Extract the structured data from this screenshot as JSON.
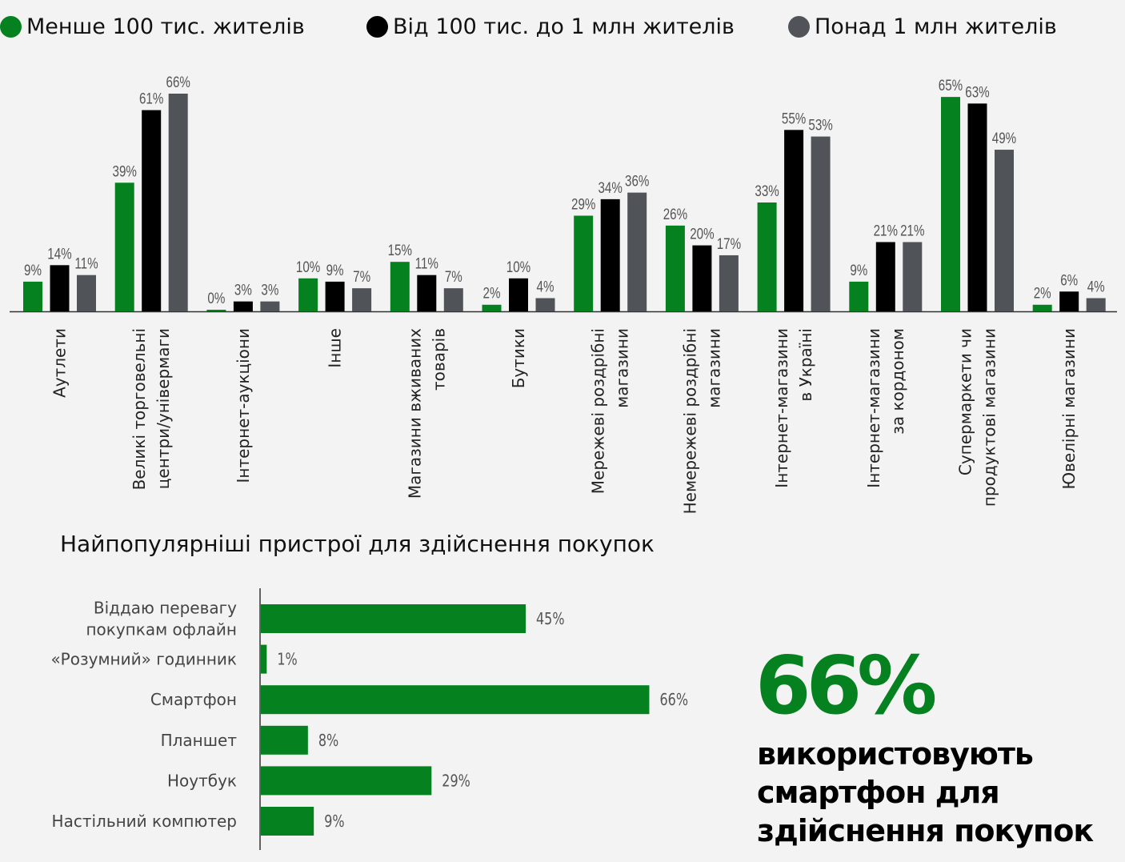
{
  "colors": {
    "small": "#05821f",
    "medium": "#000000",
    "large": "#505357",
    "background": "#f3f3f3"
  },
  "chart_data": [
    {
      "type": "bar",
      "title": "",
      "legend_position": "top",
      "ylim": [
        0,
        70
      ],
      "series": [
        {
          "name": "Менше 100 тис. жителів",
          "values": [
            9,
            39,
            0,
            10,
            15,
            2,
            29,
            26,
            33,
            9,
            65,
            2
          ]
        },
        {
          "name": "Від 100 тис. до 1 млн жителів",
          "values": [
            14,
            61,
            3,
            9,
            11,
            10,
            34,
            20,
            55,
            21,
            63,
            6
          ]
        },
        {
          "name": "Понад 1 млн жителів",
          "values": [
            11,
            66,
            3,
            7,
            7,
            4,
            36,
            17,
            53,
            21,
            49,
            4
          ]
        }
      ],
      "categories": [
        [
          "Аутлети"
        ],
        [
          "Великі торговельні",
          "центри/універмаги"
        ],
        [
          "Інтернет-аукціони"
        ],
        [
          "Інше"
        ],
        [
          "Магазини вживаних",
          "товарів"
        ],
        [
          "Бутики"
        ],
        [
          "Мережеві роздрібні",
          "магазини"
        ],
        [
          "Немережеві роздрібні",
          "магазини"
        ],
        [
          "Інтернет-магазини",
          "в Україні"
        ],
        [
          "Інтернет-магазини",
          "за кордоном"
        ],
        [
          "Супермаркети чи",
          "продуктові магазини"
        ],
        [
          "Ювелірні магазини"
        ]
      ]
    },
    {
      "type": "bar",
      "orientation": "horizontal",
      "title": "Найпопулярніші пристрої для здійснення покупок",
      "xlim": [
        0,
        70
      ],
      "categories": [
        [
          "Віддаю перевагу",
          "покупкам офлайн"
        ],
        [
          "«Розумний» годинник"
        ],
        [
          "Смартфон"
        ],
        [
          "Планшет"
        ],
        [
          "Ноутбук"
        ],
        [
          "Настільний компютер"
        ]
      ],
      "values": [
        45,
        1,
        66,
        8,
        29,
        9
      ]
    }
  ],
  "callout": {
    "value": "66%",
    "text_lines": [
      "використовують",
      "смартфон для",
      "здійснення покупок"
    ]
  }
}
